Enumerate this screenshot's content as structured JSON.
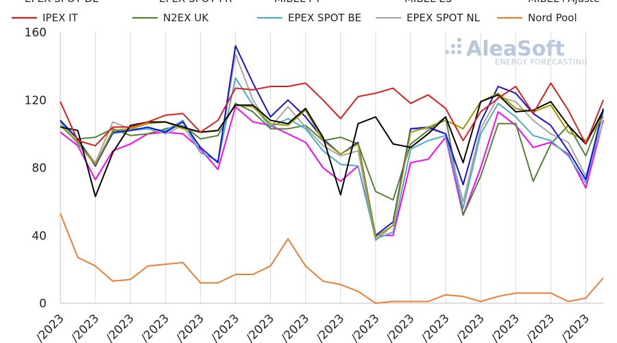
{
  "chart_data": {
    "type": "line",
    "title": "",
    "xlabel": "",
    "ylabel": "",
    "ylim": [
      0,
      160
    ],
    "yticks": [
      0,
      40,
      80,
      120,
      160
    ],
    "grid": "vertical",
    "legend_position": "top",
    "legend_row1_cut": [
      "EPEX SPOT DE",
      "EPEX SPOT FR",
      "MIBEL PT",
      "MIBEL ES",
      "MIBEL+Ajuste"
    ],
    "x_tick_labels": [
      "/2023",
      "/2023",
      "/2023",
      "/2023",
      "/2023",
      "/2023",
      "/2023",
      "/2023",
      "/2023",
      "/2023",
      "/2023",
      "/2023",
      "/2023",
      "/2023",
      "/2023",
      "/2023"
    ],
    "n_points": 32,
    "series": [
      {
        "name": "EPEX SPOT DE",
        "color": "#1010e0",
        "values": [
          108,
          97,
          81,
          101,
          102,
          104,
          101,
          107,
          92,
          83,
          152,
          130,
          110,
          120,
          110,
          97,
          88,
          95,
          40,
          48,
          103,
          104,
          100,
          70,
          107,
          128,
          124,
          112,
          105,
          90,
          73,
          115
        ]
      },
      {
        "name": "EPEX SPOT FR",
        "color": "#ff00ff",
        "values": [
          101,
          93,
          73,
          90,
          94,
          100,
          101,
          100,
          91,
          79,
          116,
          107,
          105,
          100,
          95,
          80,
          72,
          81,
          40,
          40,
          83,
          85,
          98,
          52,
          80,
          113,
          105,
          92,
          95,
          88,
          68,
          108
        ]
      },
      {
        "name": "MIBEL PT",
        "color": "#ffff33",
        "values": [
          105,
          95,
          82,
          102,
          103,
          106,
          107,
          103,
          101,
          102,
          117,
          116,
          106,
          105,
          114,
          96,
          88,
          94,
          39,
          46,
          101,
          104,
          108,
          103,
          119,
          124,
          115,
          113,
          117,
          101,
          96,
          110
        ]
      },
      {
        "name": "MIBEL ES",
        "color": "#999900",
        "values": [
          105,
          95,
          82,
          102,
          103,
          106,
          107,
          103,
          101,
          102,
          117,
          116,
          106,
          105,
          114,
          96,
          88,
          94,
          39,
          46,
          101,
          104,
          108,
          103,
          119,
          124,
          115,
          113,
          117,
          101,
          96,
          110
        ]
      },
      {
        "name": "MIBEL+Ajuste",
        "color": "#000000",
        "values": [
          104,
          102,
          63,
          89,
          105,
          107,
          107,
          104,
          101,
          102,
          117,
          117,
          108,
          106,
          115,
          98,
          64,
          106,
          110,
          94,
          92,
          100,
          110,
          83,
          119,
          123,
          113,
          114,
          119,
          105,
          94,
          114
        ]
      },
      {
        "name": "IPEX IT",
        "color": "#e31a1c",
        "values": [
          119,
          96,
          93,
          104,
          104,
          107,
          111,
          112,
          101,
          108,
          127,
          126,
          128,
          128,
          130,
          120,
          109,
          122,
          124,
          127,
          118,
          123,
          115,
          96,
          113,
          121,
          128,
          112,
          130,
          114,
          94,
          120
        ]
      },
      {
        "name": "N2EX UK",
        "color": "#538135",
        "values": [
          105,
          97,
          98,
          103,
          99,
          100,
          103,
          105,
          97,
          99,
          118,
          113,
          103,
          103,
          105,
          96,
          98,
          94,
          66,
          61,
          94,
          102,
          110,
          52,
          75,
          106,
          106,
          72,
          94,
          105,
          87,
          114
        ]
      },
      {
        "name": "EPEX SPOT BE",
        "color": "#4bacc6",
        "values": [
          107,
          94,
          82,
          100,
          102,
          103,
          102,
          108,
          89,
          84,
          133,
          117,
          104,
          109,
          103,
          90,
          82,
          81,
          38,
          42,
          91,
          96,
          99,
          56,
          100,
          118,
          110,
          99,
          96,
          87,
          71,
          113
        ]
      },
      {
        "name": "EPEX SPOT NL",
        "color": "#a5a5a5",
        "values": [
          107,
          96,
          83,
          107,
          103,
          103,
          100,
          105,
          89,
          84,
          147,
          120,
          104,
          116,
          104,
          93,
          87,
          90,
          37,
          46,
          103,
          103,
          100,
          60,
          103,
          122,
          119,
          108,
          100,
          95,
          75,
          107
        ]
      },
      {
        "name": "Nord Pool",
        "color": "#ed7d31",
        "values": [
          53,
          27,
          22,
          13,
          14,
          22,
          23,
          24,
          12,
          12,
          17,
          17,
          22,
          38,
          22,
          13,
          11,
          7,
          0,
          1,
          1,
          1,
          5,
          4,
          1,
          4,
          6,
          6,
          6,
          1,
          3,
          15
        ]
      }
    ]
  },
  "legend": {
    "row2": [
      "IPEX IT",
      "N2EX UK",
      "EPEX SPOT BE",
      "EPEX SPOT NL",
      "Nord Pool"
    ]
  },
  "logo": {
    "name": "AleaSoft",
    "tagline": "ENERGY FORECASTING"
  }
}
